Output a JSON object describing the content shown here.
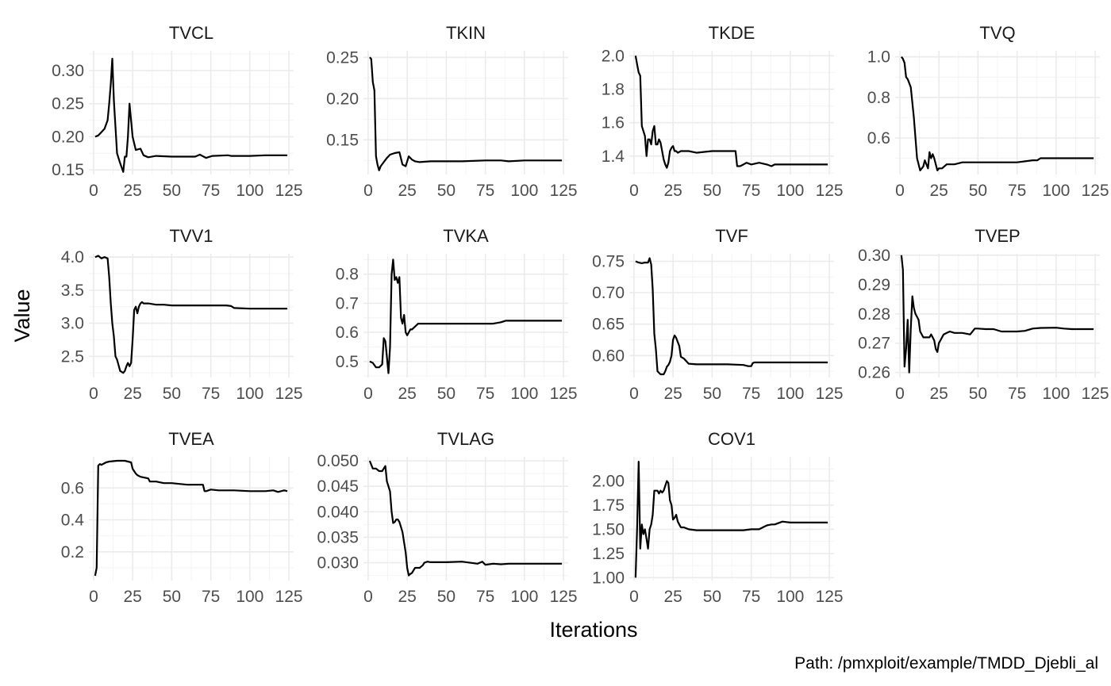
{
  "chart_data": {
    "type": "line",
    "xlabel": "Iterations",
    "ylabel": "Value",
    "caption": "Path: /pmxploit/example/TMDD_Djebli_al",
    "x_ticks": [
      0,
      25,
      50,
      75,
      100,
      125
    ],
    "panels": [
      {
        "name": "TVCL",
        "xlim": [
          -3,
          128
        ],
        "ylim": [
          0.143,
          0.33
        ],
        "y_ticks": [
          0.15,
          0.2,
          0.25,
          0.3
        ],
        "y_tick_labels": [
          "0.15",
          "0.20",
          "0.25",
          "0.30"
        ],
        "x": [
          1,
          3,
          5,
          7,
          9,
          10,
          11,
          12,
          13,
          15,
          17,
          19,
          20,
          21,
          22,
          23,
          25,
          27,
          30,
          32,
          35,
          40,
          50,
          65,
          68,
          72,
          76,
          86,
          88,
          90,
          100,
          110,
          124
        ],
        "y": [
          0.2,
          0.202,
          0.207,
          0.212,
          0.225,
          0.25,
          0.28,
          0.318,
          0.255,
          0.175,
          0.16,
          0.147,
          0.17,
          0.17,
          0.2,
          0.25,
          0.2,
          0.18,
          0.182,
          0.172,
          0.169,
          0.171,
          0.17,
          0.17,
          0.173,
          0.168,
          0.171,
          0.172,
          0.171,
          0.171,
          0.171,
          0.172,
          0.172
        ]
      },
      {
        "name": "TKIN",
        "xlim": [
          -3,
          128
        ],
        "ylim": [
          0.108,
          0.258
        ],
        "y_ticks": [
          0.15,
          0.2,
          0.25
        ],
        "y_tick_labels": [
          "0.15",
          "0.20",
          "0.25"
        ],
        "x": [
          1,
          2,
          3,
          4,
          5,
          6,
          7,
          8,
          10,
          12,
          14,
          17,
          20,
          22,
          24,
          26,
          28,
          30,
          33,
          40,
          50,
          60,
          75,
          85,
          90,
          100,
          110,
          124
        ],
        "y": [
          0.25,
          0.248,
          0.22,
          0.21,
          0.13,
          0.12,
          0.113,
          0.118,
          0.123,
          0.128,
          0.132,
          0.134,
          0.135,
          0.12,
          0.118,
          0.13,
          0.126,
          0.124,
          0.123,
          0.124,
          0.124,
          0.124,
          0.125,
          0.125,
          0.124,
          0.125,
          0.125,
          0.125
        ]
      },
      {
        "name": "TKDE",
        "xlim": [
          -3,
          128
        ],
        "ylim": [
          1.29,
          2.03
        ],
        "y_ticks": [
          1.4,
          1.6,
          1.8,
          2.0
        ],
        "y_tick_labels": [
          "1.4",
          "1.6",
          "1.8",
          "2.0"
        ],
        "x": [
          1,
          2,
          3,
          4,
          5,
          7,
          8,
          9,
          10,
          11,
          12,
          13,
          14,
          15,
          16,
          17,
          19,
          20,
          21,
          22,
          23,
          24,
          25,
          26,
          27,
          28,
          30,
          32,
          35,
          40,
          50,
          65,
          66,
          68,
          70,
          72,
          75,
          80,
          85,
          88,
          90,
          100,
          110,
          124
        ],
        "y": [
          2.0,
          1.95,
          1.9,
          1.88,
          1.58,
          1.52,
          1.4,
          1.5,
          1.5,
          1.47,
          1.55,
          1.58,
          1.47,
          1.47,
          1.5,
          1.48,
          1.38,
          1.35,
          1.33,
          1.36,
          1.43,
          1.45,
          1.46,
          1.43,
          1.43,
          1.42,
          1.43,
          1.43,
          1.43,
          1.42,
          1.43,
          1.43,
          1.34,
          1.34,
          1.35,
          1.36,
          1.35,
          1.36,
          1.35,
          1.34,
          1.35,
          1.35,
          1.35,
          1.35
        ]
      },
      {
        "name": "TVQ",
        "xlim": [
          -3,
          128
        ],
        "ylim": [
          0.42,
          1.03
        ],
        "y_ticks": [
          0.6,
          0.8,
          1.0
        ],
        "y_tick_labels": [
          "0.6",
          "0.8",
          "1.0"
        ],
        "x": [
          1,
          2,
          3,
          4,
          5,
          7,
          9,
          11,
          13,
          15,
          16,
          17,
          18,
          19,
          20,
          21,
          22,
          23,
          24,
          25,
          27,
          30,
          35,
          40,
          50,
          60,
          75,
          85,
          88,
          90,
          100,
          110,
          124
        ],
        "y": [
          1.0,
          0.99,
          0.97,
          0.9,
          0.89,
          0.85,
          0.7,
          0.5,
          0.44,
          0.46,
          0.49,
          0.47,
          0.45,
          0.53,
          0.5,
          0.52,
          0.5,
          0.47,
          0.44,
          0.45,
          0.45,
          0.47,
          0.47,
          0.48,
          0.48,
          0.48,
          0.48,
          0.49,
          0.49,
          0.5,
          0.5,
          0.5,
          0.5
        ]
      },
      {
        "name": "TVV1",
        "xlim": [
          -3,
          128
        ],
        "ylim": [
          2.18,
          4.05
        ],
        "y_ticks": [
          2.5,
          3.0,
          3.5,
          4.0
        ],
        "y_tick_labels": [
          "2.5",
          "3.0",
          "3.5",
          "4.0"
        ],
        "x": [
          1,
          3,
          5,
          7,
          9,
          10,
          11,
          12,
          13,
          14,
          15,
          17,
          19,
          20,
          21,
          22,
          23,
          24,
          25,
          26,
          27,
          28,
          29,
          30,
          31,
          32,
          35,
          40,
          45,
          50,
          60,
          70,
          80,
          85,
          88,
          90,
          100,
          110,
          124
        ],
        "y": [
          4.0,
          4.02,
          3.98,
          4.0,
          3.98,
          3.7,
          3.3,
          3.0,
          2.8,
          2.5,
          2.45,
          2.28,
          2.25,
          2.28,
          2.35,
          2.4,
          2.35,
          2.4,
          2.75,
          3.2,
          3.25,
          3.15,
          3.25,
          3.3,
          3.32,
          3.3,
          3.3,
          3.28,
          3.28,
          3.27,
          3.27,
          3.27,
          3.27,
          3.27,
          3.26,
          3.23,
          3.22,
          3.22,
          3.22
        ]
      },
      {
        "name": "TVKA",
        "xlim": [
          -3,
          128
        ],
        "ylim": [
          0.445,
          0.87
        ],
        "y_ticks": [
          0.5,
          0.6,
          0.7,
          0.8
        ],
        "y_tick_labels": [
          "0.5",
          "0.6",
          "0.7",
          "0.8"
        ],
        "x": [
          1,
          3,
          5,
          7,
          9,
          10,
          11,
          13,
          14,
          15,
          16,
          17,
          18,
          19,
          20,
          21,
          22,
          23,
          24,
          25,
          26,
          27,
          28,
          30,
          32,
          35,
          40,
          50,
          60,
          70,
          80,
          85,
          88,
          90,
          100,
          110,
          124
        ],
        "y": [
          0.5,
          0.495,
          0.48,
          0.48,
          0.49,
          0.58,
          0.57,
          0.46,
          0.55,
          0.8,
          0.85,
          0.78,
          0.79,
          0.77,
          0.79,
          0.65,
          0.63,
          0.66,
          0.6,
          0.59,
          0.6,
          0.61,
          0.61,
          0.62,
          0.63,
          0.63,
          0.63,
          0.63,
          0.63,
          0.63,
          0.63,
          0.635,
          0.64,
          0.64,
          0.64,
          0.64,
          0.64
        ]
      },
      {
        "name": "TVF",
        "xlim": [
          -3,
          128
        ],
        "ylim": [
          0.565,
          0.762
        ],
        "y_ticks": [
          0.6,
          0.65,
          0.7,
          0.75
        ],
        "y_tick_labels": [
          "0.60",
          "0.65",
          "0.70",
          "0.75"
        ],
        "x": [
          1,
          3,
          5,
          7,
          9,
          10,
          11,
          12,
          13,
          14,
          15,
          17,
          19,
          20,
          21,
          22,
          23,
          24,
          25,
          26,
          27,
          29,
          30,
          32,
          35,
          40,
          50,
          60,
          70,
          73,
          75,
          76,
          77,
          80,
          90,
          100,
          110,
          124
        ],
        "y": [
          0.75,
          0.748,
          0.747,
          0.748,
          0.748,
          0.755,
          0.745,
          0.705,
          0.635,
          0.61,
          0.575,
          0.57,
          0.57,
          0.575,
          0.582,
          0.585,
          0.59,
          0.6,
          0.625,
          0.632,
          0.628,
          0.615,
          0.598,
          0.595,
          0.587,
          0.586,
          0.586,
          0.586,
          0.585,
          0.583,
          0.583,
          0.588,
          0.589,
          0.589,
          0.589,
          0.589,
          0.589,
          0.589
        ]
      },
      {
        "name": "TVEP",
        "xlim": [
          -3,
          128
        ],
        "ylim": [
          0.2583,
          0.3005
        ],
        "y_ticks": [
          0.26,
          0.27,
          0.28,
          0.29,
          0.3
        ],
        "y_tick_labels": [
          "0.26",
          "0.27",
          "0.28",
          "0.29",
          "0.30"
        ],
        "x": [
          1,
          2,
          3,
          4,
          5,
          6,
          7,
          8,
          9,
          10,
          11,
          12,
          13,
          15,
          17,
          19,
          20,
          21,
          22,
          23,
          24,
          25,
          26,
          27,
          28,
          30,
          32,
          35,
          40,
          45,
          48,
          50,
          55,
          60,
          65,
          70,
          75,
          80,
          85,
          90,
          100,
          105,
          110,
          124
        ],
        "y": [
          0.3,
          0.295,
          0.262,
          0.268,
          0.278,
          0.26,
          0.275,
          0.286,
          0.282,
          0.28,
          0.279,
          0.278,
          0.274,
          0.272,
          0.272,
          0.272,
          0.273,
          0.272,
          0.271,
          0.268,
          0.267,
          0.27,
          0.271,
          0.272,
          0.273,
          0.2735,
          0.274,
          0.2735,
          0.2735,
          0.273,
          0.275,
          0.275,
          0.2748,
          0.2748,
          0.274,
          0.274,
          0.274,
          0.2742,
          0.275,
          0.2752,
          0.2753,
          0.275,
          0.2748,
          0.2748
        ]
      },
      {
        "name": "TVEA",
        "xlim": [
          -3,
          128
        ],
        "ylim": [
          0.02,
          0.795
        ],
        "y_ticks": [
          0.2,
          0.4,
          0.6
        ],
        "y_tick_labels": [
          "0.2",
          "0.4",
          "0.6"
        ],
        "x": [
          1,
          2,
          3,
          4,
          5,
          6,
          8,
          10,
          15,
          20,
          24,
          25,
          27,
          28,
          30,
          35,
          36,
          40,
          45,
          50,
          55,
          60,
          65,
          70,
          71,
          72,
          75,
          80,
          90,
          100,
          110,
          115,
          118,
          120,
          122,
          124
        ],
        "y": [
          0.05,
          0.1,
          0.74,
          0.75,
          0.745,
          0.75,
          0.76,
          0.765,
          0.77,
          0.77,
          0.76,
          0.72,
          0.69,
          0.68,
          0.67,
          0.66,
          0.64,
          0.64,
          0.63,
          0.63,
          0.625,
          0.62,
          0.62,
          0.62,
          0.58,
          0.58,
          0.59,
          0.585,
          0.585,
          0.58,
          0.58,
          0.585,
          0.575,
          0.58,
          0.585,
          0.58
        ]
      },
      {
        "name": "TVLAG",
        "xlim": [
          -3,
          128
        ],
        "ylim": [
          0.0265,
          0.0508
        ],
        "y_ticks": [
          0.03,
          0.035,
          0.04,
          0.045,
          0.05
        ],
        "y_tick_labels": [
          "0.030",
          "0.035",
          "0.040",
          "0.045",
          "0.050"
        ],
        "x": [
          1,
          3,
          5,
          7,
          9,
          11,
          12,
          13,
          14,
          15,
          16,
          17,
          18,
          19,
          20,
          21,
          22,
          23,
          24,
          25,
          26,
          27,
          28,
          30,
          33,
          35,
          36,
          38,
          40,
          50,
          60,
          70,
          73,
          75,
          80,
          85,
          90,
          100,
          110,
          124
        ],
        "y": [
          0.05,
          0.0485,
          0.0485,
          0.048,
          0.048,
          0.049,
          0.046,
          0.045,
          0.044,
          0.04,
          0.0378,
          0.038,
          0.0385,
          0.0385,
          0.038,
          0.037,
          0.036,
          0.034,
          0.032,
          0.029,
          0.0275,
          0.0278,
          0.028,
          0.029,
          0.029,
          0.0295,
          0.03,
          0.0302,
          0.0301,
          0.0301,
          0.0302,
          0.0298,
          0.0302,
          0.0296,
          0.0298,
          0.0297,
          0.0298,
          0.0298,
          0.0298,
          0.0298
        ]
      },
      {
        "name": "COV1",
        "xlim": [
          -3,
          128
        ],
        "ylim": [
          0.97,
          2.25
        ],
        "y_ticks": [
          1.0,
          1.25,
          1.5,
          1.75,
          2.0
        ],
        "y_tick_labels": [
          "1.00",
          "1.25",
          "1.50",
          "1.75",
          "2.00"
        ],
        "x": [
          1,
          2,
          3,
          4,
          5,
          6,
          7,
          8,
          9,
          10,
          11,
          12,
          13,
          15,
          16,
          17,
          18,
          19,
          20,
          21,
          22,
          23,
          24,
          25,
          26,
          27,
          28,
          29,
          30,
          32,
          35,
          40,
          50,
          60,
          70,
          75,
          80,
          85,
          88,
          90,
          95,
          100,
          110,
          124
        ],
        "y": [
          1.0,
          1.5,
          2.2,
          1.3,
          1.55,
          1.45,
          1.5,
          1.4,
          1.3,
          1.5,
          1.55,
          1.65,
          1.9,
          1.9,
          1.87,
          1.9,
          1.88,
          1.9,
          1.95,
          2.0,
          1.98,
          1.8,
          1.75,
          1.6,
          1.62,
          1.65,
          1.58,
          1.55,
          1.52,
          1.52,
          1.5,
          1.49,
          1.49,
          1.49,
          1.49,
          1.5,
          1.5,
          1.54,
          1.55,
          1.55,
          1.58,
          1.57,
          1.57,
          1.57
        ]
      }
    ]
  }
}
